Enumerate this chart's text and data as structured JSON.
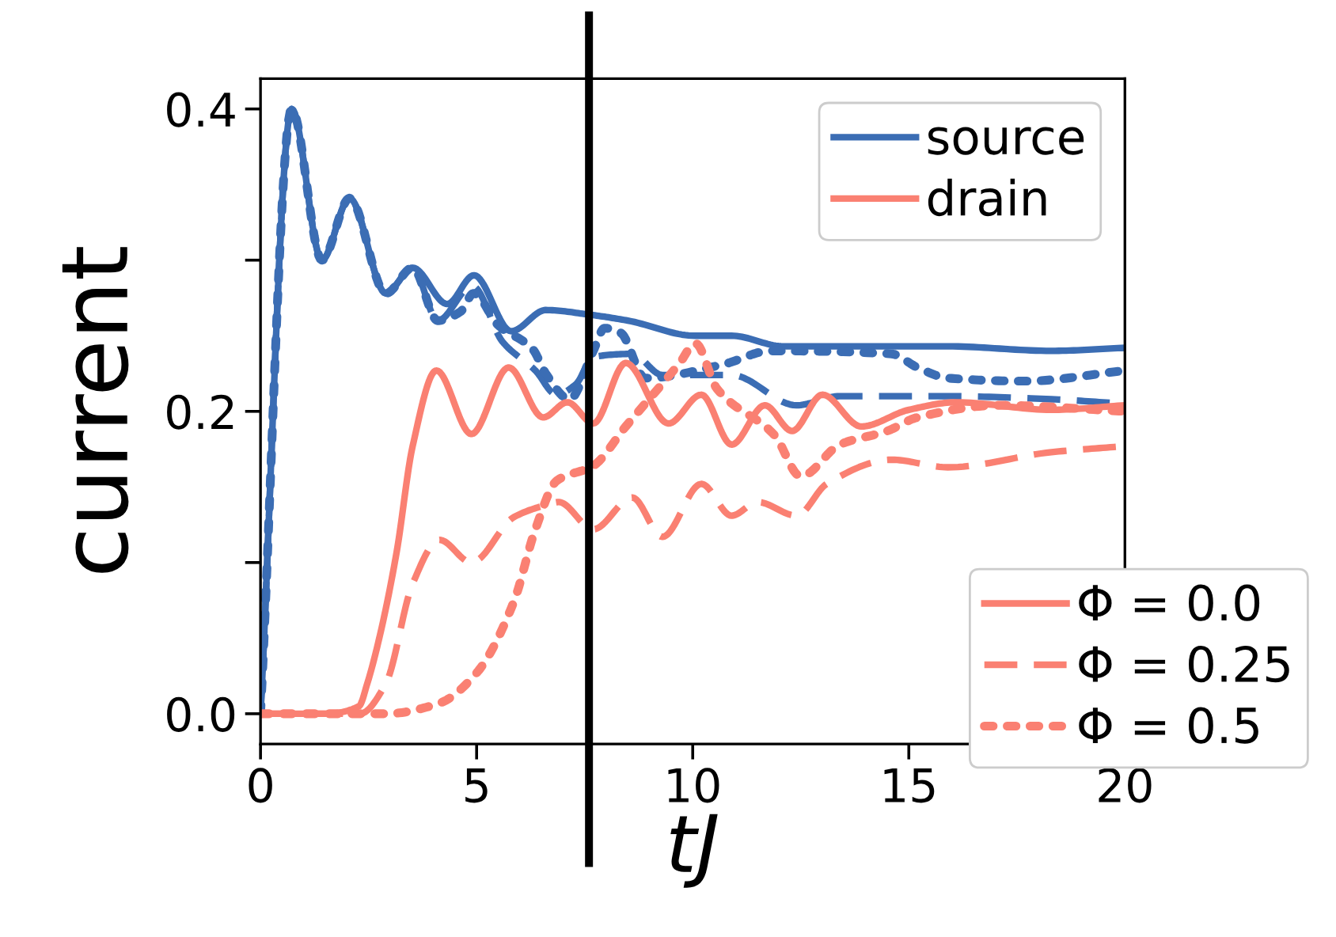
{
  "chart_data": {
    "type": "line",
    "xlabel": "tJ",
    "ylabel": "current",
    "xlim": [
      0,
      20
    ],
    "ylim": [
      -0.02,
      0.42
    ],
    "xticks": [
      0,
      5,
      10,
      15,
      20
    ],
    "yticks": [
      {
        "value": 0.0,
        "label": "0.0"
      },
      {
        "value": 0.1,
        "label": null
      },
      0.2,
      {
        "value": 0.3,
        "label": null
      },
      0.4
    ],
    "grid": false,
    "marker": "none",
    "legend": "right",
    "annotations": [
      "drain"
    ],
    "ref_lines": [
      {
        "axis": "x",
        "value": 7.6,
        "color": "#000000",
        "line_style": "solid"
      }
    ],
    "series": [
      {
        "name": "source",
        "color": "#3b6db4",
        "line_style": "solid",
        "x": [
          0,
          0.72,
          1.42,
          2.06,
          2.9,
          3.52,
          4.32,
          4.94,
          5.8,
          6.6,
          7.6,
          8.5,
          10.06,
          10.9,
          12.1,
          13.4,
          15.9,
          18.3,
          20
        ],
        "values": [
          0,
          0.4,
          0.3,
          0.341,
          0.278,
          0.295,
          0.271,
          0.29,
          0.253,
          0.267,
          0.264,
          0.26,
          0.25,
          0.25,
          0.243,
          0.243,
          0.243,
          0.24,
          0.242
        ]
      },
      {
        "color": "#3b6db4",
        "line_style": "dashed",
        "x": [
          0,
          0.72,
          1.42,
          2.06,
          2.9,
          3.52,
          4.1,
          4.9,
          5.6,
          6.36,
          6.85,
          7.3,
          7.7,
          8.6,
          9.3,
          10.9,
          12.4,
          13.4,
          15.9,
          18.3,
          20
        ],
        "values": [
          0,
          0.4,
          0.3,
          0.341,
          0.278,
          0.295,
          0.26,
          0.283,
          0.246,
          0.227,
          0.211,
          0.218,
          0.236,
          0.238,
          0.224,
          0.224,
          0.204,
          0.21,
          0.21,
          0.208,
          0.205
        ]
      },
      {
        "color": "#3b6db4",
        "line_style": "dotted",
        "x": [
          0,
          0.72,
          1.42,
          2.06,
          2.9,
          3.52,
          4.1,
          4.63,
          4.93,
          5.5,
          6.3,
          6.6,
          7.15,
          7.7,
          7.96,
          8.33,
          8.9,
          10.7,
          11.8,
          14.6,
          15.2,
          15.9,
          17.7,
          20
        ],
        "values": [
          0,
          0.4,
          0.3,
          0.341,
          0.278,
          0.295,
          0.26,
          0.266,
          0.278,
          0.257,
          0.241,
          0.225,
          0.208,
          0.24,
          0.255,
          0.252,
          0.222,
          0.231,
          0.24,
          0.238,
          0.229,
          0.222,
          0.22,
          0.227
        ]
      },
      {
        "name": "Φ = 0.0",
        "color": "#fa8072",
        "line_style": "solid",
        "x": [
          0,
          1.5,
          2.28,
          2.47,
          2.78,
          3.15,
          3.52,
          4.07,
          4.88,
          5.74,
          6.54,
          7.1,
          7.7,
          8.45,
          9.44,
          10.2,
          10.9,
          11.67,
          12.3,
          13.0,
          13.9,
          15.0,
          16.1,
          18.3,
          20
        ],
        "values": [
          0,
          0,
          0.005,
          0.02,
          0.054,
          0.107,
          0.177,
          0.227,
          0.185,
          0.229,
          0.196,
          0.206,
          0.192,
          0.232,
          0.192,
          0.211,
          0.178,
          0.204,
          0.187,
          0.211,
          0.19,
          0.201,
          0.206,
          0.201,
          0.204
        ]
      },
      {
        "name": "Φ = 0.25",
        "color": "#fa8072",
        "line_style": "dashed",
        "x": [
          0,
          2.3,
          2.9,
          3.52,
          4.14,
          4.88,
          5.86,
          6.6,
          6.9,
          7.7,
          8.6,
          9.3,
          10.2,
          10.9,
          11.5,
          12.4,
          13.1,
          14.6,
          15.9,
          18.3,
          20
        ],
        "values": [
          0,
          0,
          0.02,
          0.086,
          0.115,
          0.1,
          0.13,
          0.138,
          0.14,
          0.122,
          0.143,
          0.117,
          0.152,
          0.131,
          0.14,
          0.131,
          0.152,
          0.168,
          0.163,
          0.173,
          0.177
        ]
      },
      {
        "name": "Φ = 0.5",
        "color": "#fa8072",
        "line_style": "dotted",
        "x": [
          0,
          2.9,
          4.14,
          5.0,
          5.86,
          6.36,
          6.85,
          7.7,
          8.45,
          9.7,
          10.06,
          10.56,
          11.9,
          12.5,
          13.4,
          14.5,
          15.2,
          17.1,
          20
        ],
        "values": [
          0,
          0,
          0.007,
          0.027,
          0.074,
          0.122,
          0.154,
          0.164,
          0.19,
          0.232,
          0.245,
          0.215,
          0.184,
          0.157,
          0.178,
          0.187,
          0.196,
          0.204,
          0.2
        ]
      }
    ]
  }
}
